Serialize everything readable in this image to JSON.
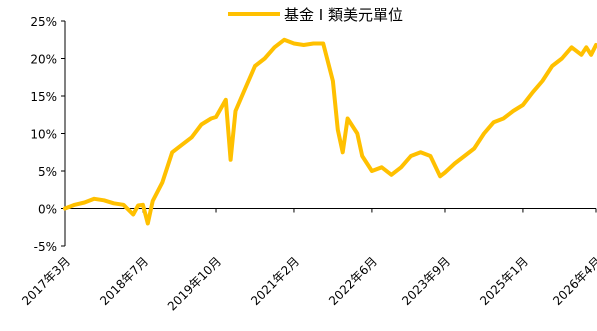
{
  "chart_data": {
    "type": "line",
    "title": "",
    "xlabel": "",
    "ylabel": "",
    "ylim": [
      -5,
      25
    ],
    "yticks": [
      -5,
      0,
      5,
      10,
      15,
      20,
      25
    ],
    "ytick_labels": [
      "-5%",
      "0%",
      "5%",
      "10%",
      "15%",
      "20%",
      "25%"
    ],
    "x_range": [
      "2017-03",
      "2026-04"
    ],
    "xtick_labels": [
      "2017年3月",
      "2018年7月",
      "2019年10月",
      "2021年2月",
      "2022年6月",
      "2023年9月",
      "2025年1月",
      "2026年4月"
    ],
    "xtick_dates": [
      "2017-03",
      "2018-07",
      "2019-10",
      "2021-02",
      "2022-06",
      "2023-09",
      "2025-01",
      "2026-04"
    ],
    "legend_position": "top",
    "grid": false,
    "series": [
      {
        "name": "基金 I 類美元單位",
        "color": "#FFC000",
        "points": [
          [
            "2017-03",
            0.0
          ],
          [
            "2017-05",
            0.5
          ],
          [
            "2017-07",
            0.8
          ],
          [
            "2017-09",
            1.3
          ],
          [
            "2017-11",
            1.1
          ],
          [
            "2018-01",
            0.7
          ],
          [
            "2018-03",
            0.5
          ],
          [
            "2018-05",
            -0.8
          ],
          [
            "2018-06",
            0.4
          ],
          [
            "2018-07",
            0.5
          ],
          [
            "2018-08",
            -2.0
          ],
          [
            "2018-09",
            1.0
          ],
          [
            "2018-11",
            3.5
          ],
          [
            "2019-01",
            7.5
          ],
          [
            "2019-03",
            8.5
          ],
          [
            "2019-05",
            9.5
          ],
          [
            "2019-07",
            11.2
          ],
          [
            "2019-09",
            12.0
          ],
          [
            "2019-10",
            12.2
          ],
          [
            "2019-12",
            14.5
          ],
          [
            "2020-01",
            6.5
          ],
          [
            "2020-02",
            13.0
          ],
          [
            "2020-04",
            16.0
          ],
          [
            "2020-06",
            19.0
          ],
          [
            "2020-08",
            20.0
          ],
          [
            "2020-10",
            21.5
          ],
          [
            "2020-12",
            22.5
          ],
          [
            "2021-02",
            22.0
          ],
          [
            "2021-04",
            21.8
          ],
          [
            "2021-06",
            22.0
          ],
          [
            "2021-08",
            22.0
          ],
          [
            "2021-10",
            17.0
          ],
          [
            "2021-11",
            10.5
          ],
          [
            "2021-12",
            7.5
          ],
          [
            "2022-01",
            12.0
          ],
          [
            "2022-03",
            10.0
          ],
          [
            "2022-04",
            7.0
          ],
          [
            "2022-06",
            5.0
          ],
          [
            "2022-08",
            5.5
          ],
          [
            "2022-10",
            4.5
          ],
          [
            "2022-12",
            5.5
          ],
          [
            "2023-02",
            7.0
          ],
          [
            "2023-04",
            7.5
          ],
          [
            "2023-06",
            7.0
          ],
          [
            "2023-08",
            4.3
          ],
          [
            "2023-09",
            4.8
          ],
          [
            "2023-11",
            6.0
          ],
          [
            "2024-01",
            7.0
          ],
          [
            "2024-03",
            8.0
          ],
          [
            "2024-05",
            10.0
          ],
          [
            "2024-07",
            11.5
          ],
          [
            "2024-09",
            12.0
          ],
          [
            "2024-11",
            13.0
          ],
          [
            "2025-01",
            13.8
          ],
          [
            "2025-03",
            15.5
          ],
          [
            "2025-05",
            17.0
          ],
          [
            "2025-07",
            19.0
          ],
          [
            "2025-09",
            20.0
          ],
          [
            "2025-11",
            21.5
          ],
          [
            "2026-01",
            20.5
          ],
          [
            "2026-02",
            21.5
          ],
          [
            "2026-03",
            20.5
          ],
          [
            "2026-04",
            21.8
          ]
        ]
      }
    ]
  }
}
